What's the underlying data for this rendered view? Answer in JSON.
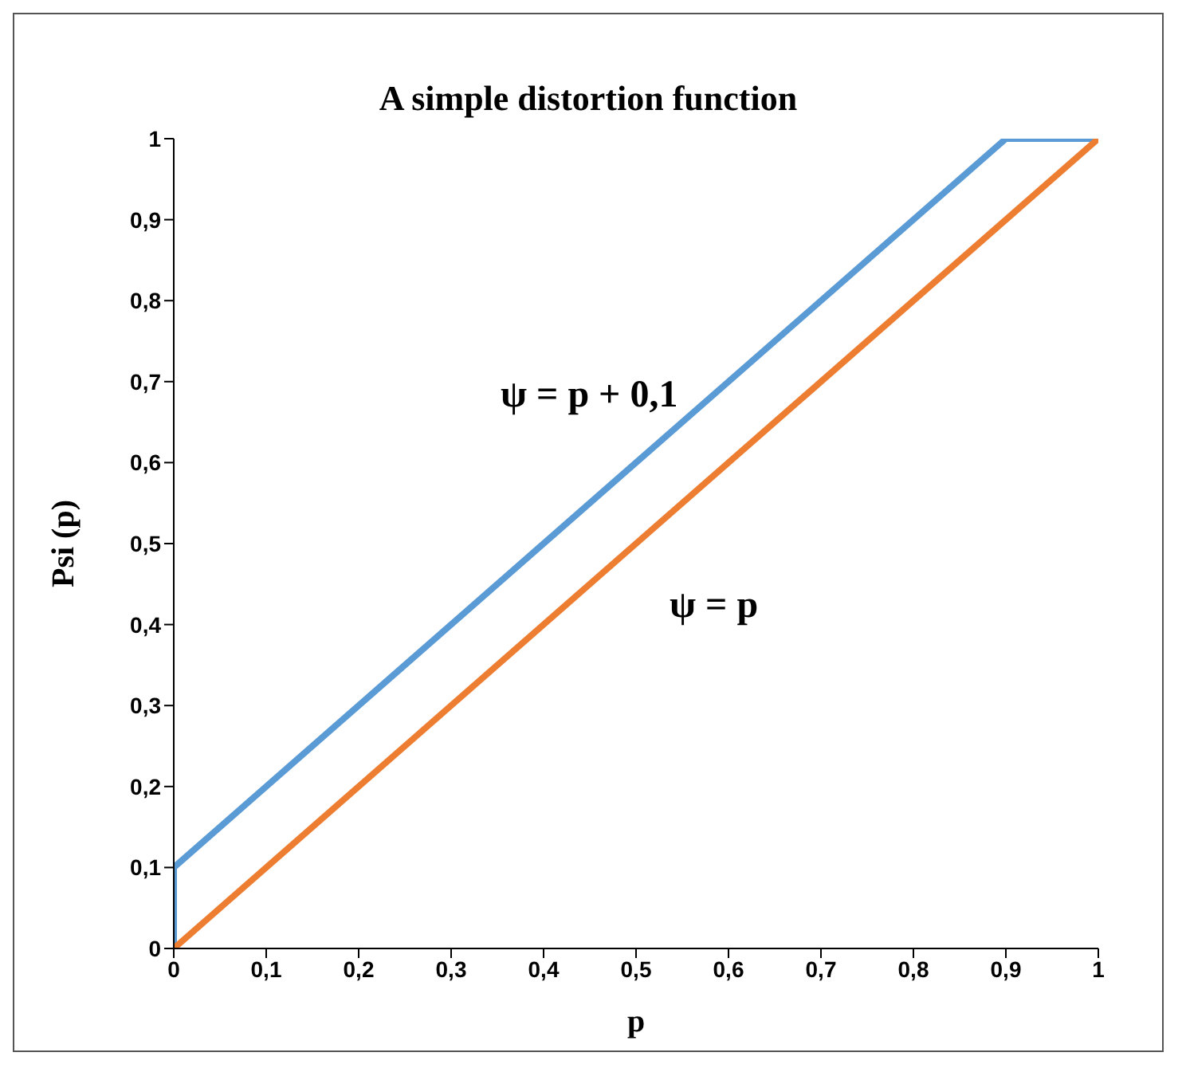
{
  "chart_data": {
    "type": "line",
    "title": "A simple distortion function",
    "xlabel": "p",
    "ylabel": "Psi (p)",
    "series": [
      {
        "color": "#5b9bd5",
        "x": [
          0,
          0,
          0.9,
          1
        ],
        "values": [
          0,
          0.1,
          1,
          1
        ]
      },
      {
        "color": "#ed7d31",
        "x": [
          0,
          1
        ],
        "values": [
          0,
          1
        ]
      }
    ],
    "annotations": [
      "ψ = p + 0,1",
      "ψ = p"
    ],
    "xlim": [
      0,
      1
    ],
    "ylim": [
      0,
      1
    ],
    "xticks": [
      0,
      {
        "value": 0.1,
        "label": "0,1"
      },
      {
        "value": 0.2,
        "label": "0,2"
      },
      {
        "value": 0.3,
        "label": "0,3"
      },
      {
        "value": 0.4,
        "label": "0,4"
      },
      {
        "value": 0.5,
        "label": "0,5"
      },
      {
        "value": 0.6,
        "label": "0,6"
      },
      {
        "value": 0.7,
        "label": "0,7"
      },
      {
        "value": 0.8,
        "label": "0,8"
      },
      {
        "value": 0.9,
        "label": "0,9"
      },
      1
    ],
    "yticks": [
      0,
      {
        "value": 0.1,
        "label": "0,1"
      },
      {
        "value": 0.2,
        "label": "0,2"
      },
      {
        "value": 0.3,
        "label": "0,3"
      },
      {
        "value": 0.4,
        "label": "0,4"
      },
      {
        "value": 0.5,
        "label": "0,5"
      },
      {
        "value": 0.6,
        "label": "0,6"
      },
      {
        "value": 0.7,
        "label": "0,7"
      },
      {
        "value": 0.8,
        "label": "0,8"
      },
      {
        "value": 0.9,
        "label": "0,9"
      },
      1
    ],
    "grid": false,
    "legend": false,
    "marker": "none",
    "line_style": "solid"
  }
}
